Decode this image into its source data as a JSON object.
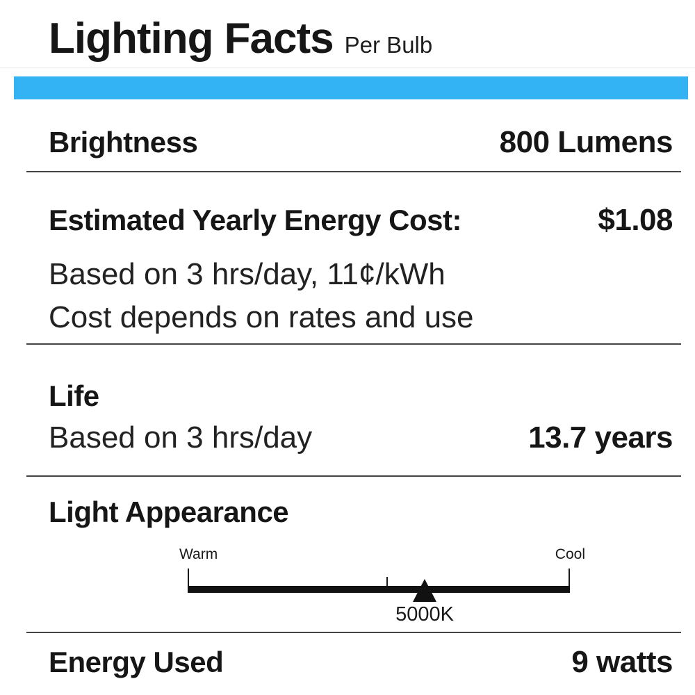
{
  "header": {
    "title": "Lighting Facts",
    "subtitle": "Per Bulb"
  },
  "accent_color": "#33B2F4",
  "rows": {
    "brightness": {
      "label": "Brightness",
      "value": "800 Lumens"
    },
    "energy_cost": {
      "label": "Estimated Yearly Energy Cost:",
      "value": "$1.08",
      "notes": [
        "Based on 3 hrs/day, 11¢/kWh",
        "Cost depends on rates and use"
      ]
    },
    "life": {
      "label": "Life",
      "note": "Based on 3 hrs/day",
      "value": "13.7 years"
    },
    "light_appearance": {
      "label": "Light Appearance",
      "scale": {
        "left_label": "Warm",
        "right_label": "Cool",
        "marker_label": "5000K",
        "marker_position_pct": 62,
        "tick_position_pct": 52
      }
    },
    "energy_used": {
      "label": "Energy Used",
      "value": "9 watts"
    }
  }
}
